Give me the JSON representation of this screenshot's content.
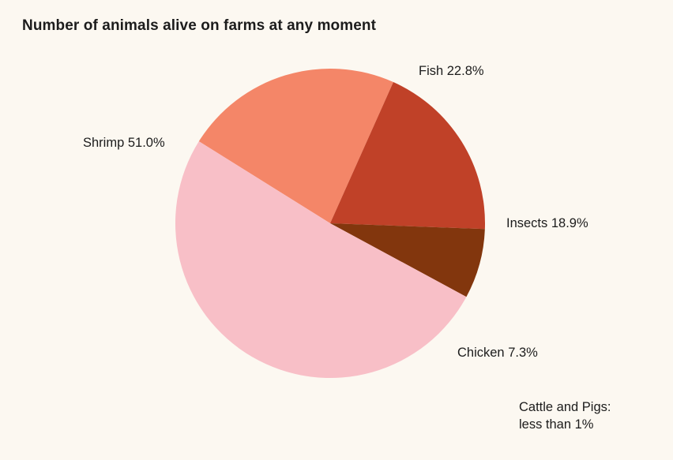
{
  "chart_data": {
    "type": "pie",
    "title": "Number of animals alive on farms at any moment",
    "slices": [
      {
        "name": "Fish",
        "value": 22.8,
        "label": "Fish 22.8%",
        "color": "#f48668"
      },
      {
        "name": "Insects",
        "value": 18.9,
        "label": "Insects 18.9%",
        "color": "#c04128"
      },
      {
        "name": "Chicken",
        "value": 7.3,
        "label": "Chicken 7.3%",
        "color": "#82360d"
      },
      {
        "name": "Shrimp",
        "value": 51.0,
        "label": "Shrimp 51.0%",
        "color": "#f8bfc7"
      }
    ],
    "annotation": {
      "line1": "Cattle and Pigs:",
      "line2": "less than 1%"
    }
  }
}
